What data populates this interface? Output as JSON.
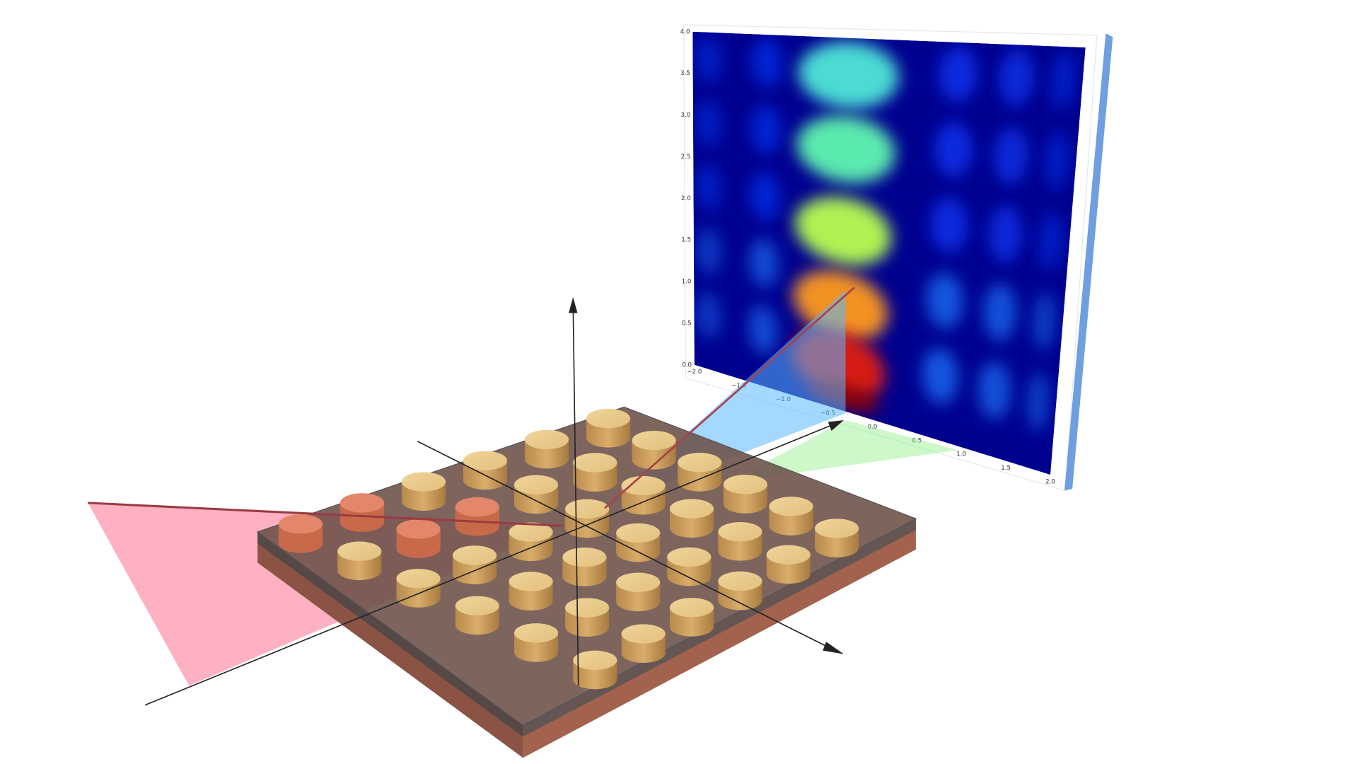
{
  "heatmap": {
    "x_tick_labels": [
      "−2.0",
      "−1.5",
      "−1.0",
      "−0.5",
      "0.0",
      "0.5",
      "1.0",
      "1.5",
      "2.0"
    ],
    "y_tick_labels": [
      "0.0",
      "0.5",
      "1.0",
      "1.5",
      "2.0",
      "2.5",
      "3.0",
      "3.5",
      "4.0"
    ]
  }
}
